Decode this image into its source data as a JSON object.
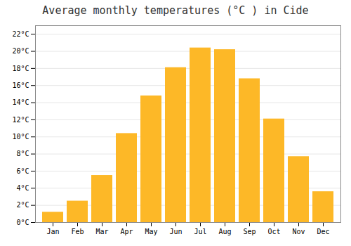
{
  "chart_data": {
    "type": "bar",
    "title": "Average monthly temperatures (°C ) in Cide",
    "categories": [
      "Jan",
      "Feb",
      "Mar",
      "Apr",
      "May",
      "Jun",
      "Jul",
      "Aug",
      "Sep",
      "Oct",
      "Nov",
      "Dec"
    ],
    "values": [
      1.2,
      2.5,
      5.5,
      10.4,
      14.8,
      18.1,
      20.4,
      20.2,
      16.8,
      12.1,
      7.7,
      3.6
    ],
    "color": "#FDB827",
    "ylim": [
      0,
      23
    ],
    "yticks": [
      {
        "value": 0,
        "label": "0°C"
      },
      {
        "value": 2,
        "label": "2°C"
      },
      {
        "value": 4,
        "label": "4°C"
      },
      {
        "value": 6,
        "label": "6°C"
      },
      {
        "value": 8,
        "label": "8°C"
      },
      {
        "value": 10,
        "label": "10°C"
      },
      {
        "value": 12,
        "label": "12°C"
      },
      {
        "value": 14,
        "label": "14°C"
      },
      {
        "value": 16,
        "label": "16°C"
      },
      {
        "value": 18,
        "label": "18°C"
      },
      {
        "value": 20,
        "label": "20°C"
      },
      {
        "value": 22,
        "label": "22°C"
      }
    ],
    "grid": true
  }
}
